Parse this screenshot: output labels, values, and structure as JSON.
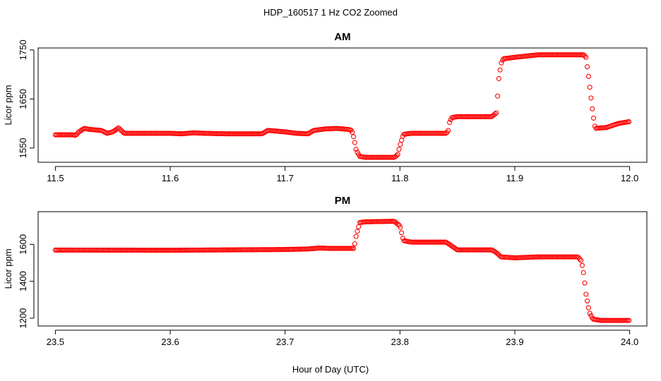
{
  "figure": {
    "title": "HDP_160517  1 Hz CO2 Zoomed",
    "xlabel": "Hour of Day (UTC)"
  },
  "chart_data": [
    {
      "type": "scatter",
      "title": "AM",
      "xlabel": "",
      "ylabel": "Licor ppm",
      "xlim": [
        11.485,
        12.015
      ],
      "ylim": [
        1521,
        1754
      ],
      "xticks": [
        11.5,
        11.6,
        11.7,
        11.8,
        11.9,
        12.0
      ],
      "xtick_labels": [
        "11.5",
        "11.6",
        "11.7",
        "11.8",
        "11.9",
        "12.0"
      ],
      "yticks": [
        1550,
        1650,
        1750
      ],
      "ytick_labels": [
        "1550",
        "1650",
        "1750"
      ],
      "marker": "open-circle",
      "color": "#ff0000",
      "series": [
        {
          "x": [
            11.5,
            11.515,
            11.518,
            11.52,
            11.525,
            11.53,
            11.54,
            11.545,
            11.55,
            11.555,
            11.56,
            11.57,
            11.6,
            11.61,
            11.62,
            11.63,
            11.65,
            11.67,
            11.68,
            11.685,
            11.7,
            11.71,
            11.72,
            11.725,
            11.735,
            11.745,
            11.755,
            11.758,
            11.76,
            11.762,
            11.765,
            11.77,
            11.795,
            11.798,
            11.8,
            11.803,
            11.81,
            11.84,
            11.842,
            11.843,
            11.845,
            11.85,
            11.88,
            11.884,
            11.886,
            11.888,
            11.89,
            11.9,
            11.92,
            11.96,
            11.962,
            11.964,
            11.966,
            11.968,
            11.97,
            11.98,
            11.99,
            12.0
          ],
          "y": [
            1577,
            1577,
            1576,
            1582,
            1590,
            1588,
            1586,
            1580,
            1583,
            1591,
            1580,
            1580,
            1580,
            1579,
            1581,
            1580,
            1579,
            1579,
            1579,
            1586,
            1583,
            1580,
            1579,
            1586,
            1589,
            1590,
            1588,
            1586,
            1570,
            1545,
            1533,
            1531,
            1531,
            1536,
            1555,
            1578,
            1580,
            1580,
            1584,
            1601,
            1612,
            1614,
            1614,
            1622,
            1690,
            1722,
            1732,
            1735,
            1740,
            1740,
            1735,
            1700,
            1660,
            1620,
            1590,
            1592,
            1600,
            1604
          ]
        }
      ]
    },
    {
      "type": "scatter",
      "title": "PM",
      "xlabel": "",
      "ylabel": "Licor ppm",
      "xlim": [
        23.485,
        24.015
      ],
      "ylim": [
        1158,
        1777
      ],
      "xticks": [
        23.5,
        23.6,
        23.7,
        23.8,
        23.9,
        24.0
      ],
      "xtick_labels": [
        "23.5",
        "23.6",
        "23.7",
        "23.8",
        "23.9",
        "24.0"
      ],
      "yticks": [
        1200,
        1400,
        1600
      ],
      "ytick_labels": [
        "1200",
        "1400",
        "1600"
      ],
      "marker": "open-circle",
      "color": "#ff0000",
      "series": [
        {
          "x": [
            23.5,
            23.6,
            23.7,
            23.72,
            23.73,
            23.74,
            23.76,
            23.762,
            23.765,
            23.77,
            23.795,
            23.8,
            23.803,
            23.81,
            23.84,
            23.843,
            23.85,
            23.88,
            23.884,
            23.888,
            23.9,
            23.92,
            23.955,
            23.958,
            23.96,
            23.962,
            23.965,
            23.968,
            23.975,
            24.0
          ],
          "y": [
            1569,
            1568,
            1572,
            1575,
            1580,
            1578,
            1578,
            1650,
            1718,
            1722,
            1725,
            1700,
            1620,
            1612,
            1612,
            1600,
            1570,
            1570,
            1555,
            1532,
            1527,
            1532,
            1532,
            1510,
            1440,
            1330,
            1230,
            1195,
            1188,
            1188
          ]
        }
      ]
    }
  ]
}
